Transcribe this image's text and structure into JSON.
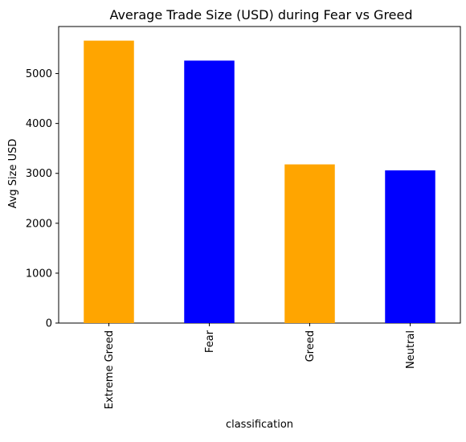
{
  "chart_data": {
    "type": "bar",
    "title": "Average Trade Size (USD) during Fear vs Greed",
    "xlabel": "classification",
    "ylabel": "Avg Size USD",
    "categories": [
      "Extreme Greed",
      "Fear",
      "Greed",
      "Neutral"
    ],
    "values": [
      5660,
      5260,
      3180,
      3060
    ],
    "bar_colors": [
      "#FFA500",
      "#0000FF",
      "#FFA500",
      "#0000FF"
    ],
    "ylim": [
      0,
      5943
    ],
    "yticks": [
      0,
      1000,
      2000,
      3000,
      4000,
      5000
    ],
    "ytick_labels": [
      "0",
      "1000",
      "2000",
      "3000",
      "4000",
      "5000"
    ],
    "grid": false,
    "legend": "none"
  }
}
